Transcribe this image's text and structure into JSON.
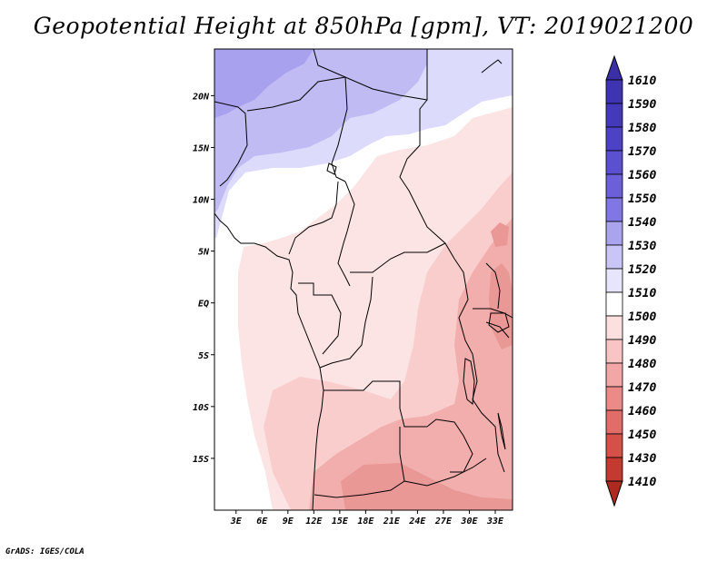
{
  "title": "Geopotential Height at 850hPa [gpm], VT: 2019021200",
  "credit": "GrADS: IGES/COLA",
  "chart_data": {
    "type": "heatmap",
    "variable": "Geopotential Height at 850hPa",
    "units": "gpm",
    "valid_time": "2019021200",
    "lon_range": [
      0.5,
      35
    ],
    "lat_range": [
      -20,
      24.5
    ],
    "lat_ticks": [
      {
        "value": 20,
        "label": "20N"
      },
      {
        "value": 15,
        "label": "15N"
      },
      {
        "value": 10,
        "label": "10N"
      },
      {
        "value": 5,
        "label": "5N"
      },
      {
        "value": 0,
        "label": "EQ"
      },
      {
        "value": -5,
        "label": "5S"
      },
      {
        "value": -10,
        "label": "10S"
      },
      {
        "value": -15,
        "label": "15S"
      }
    ],
    "lon_ticks": [
      {
        "value": 3,
        "label": "3E"
      },
      {
        "value": 6,
        "label": "6E"
      },
      {
        "value": 9,
        "label": "9E"
      },
      {
        "value": 12,
        "label": "12E"
      },
      {
        "value": 15,
        "label": "15E"
      },
      {
        "value": 18,
        "label": "18E"
      },
      {
        "value": 21,
        "label": "21E"
      },
      {
        "value": 24,
        "label": "24E"
      },
      {
        "value": 27,
        "label": "27E"
      },
      {
        "value": 30,
        "label": "30E"
      },
      {
        "value": 33,
        "label": "33E"
      }
    ],
    "colorbar": {
      "levels": [
        "1610",
        "1590",
        "1580",
        "1570",
        "1560",
        "1550",
        "1540",
        "1530",
        "1520",
        "1510",
        "1500",
        "1490",
        "1480",
        "1470",
        "1460",
        "1450",
        "1430",
        "1410"
      ],
      "colors": [
        "#3a2fa6",
        "#3e33b0",
        "#4438bb",
        "#4d42c6",
        "#5a50d0",
        "#6b60da",
        "#8077e4",
        "#aaa3ee",
        "#c9c5f6",
        "#e6e5fb",
        "#ffffff",
        "#fce0e0",
        "#f8c4c4",
        "#f3a6a6",
        "#ec8a88",
        "#e26c69",
        "#d45049",
        "#c33a30",
        "#ae2a1f"
      ]
    },
    "regions": [
      {
        "value_range": "1540-1550",
        "color": "#a7a1ee"
      },
      {
        "value_range": "1530-1540",
        "color": "#c0bbf3"
      },
      {
        "value_range": "1520-1530",
        "color": "#dcdbfb"
      },
      {
        "value_range": "1510-1520",
        "color": "#ffffff"
      },
      {
        "value_range": "1500-1510",
        "color": "#fde4e4"
      },
      {
        "value_range": "1490-1500",
        "color": "#f8cdcc"
      },
      {
        "value_range": "1480-1490",
        "color": "#f2aeac"
      },
      {
        "value_range": "1470-1480",
        "color": "#e99896"
      }
    ]
  }
}
